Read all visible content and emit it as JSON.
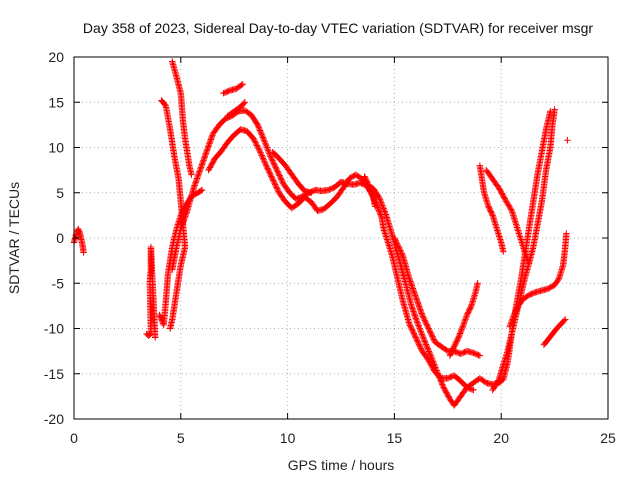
{
  "chart_data": {
    "type": "scatter",
    "title": "Day 358 of 2023, Sidereal Day-to-day VTEC variation (SDTVAR) for receiver msgr",
    "xlabel": "GPS time / hours",
    "ylabel": "SDTVAR / TECUs",
    "xlim": [
      0,
      25
    ],
    "ylim": [
      -20,
      20
    ],
    "xticks": [
      "0",
      "5",
      "10",
      "15",
      "20",
      "25"
    ],
    "yticks": [
      "-20",
      "-15",
      "-10",
      "-5",
      "0",
      "5",
      "10",
      "15",
      "20"
    ],
    "grid": true,
    "marker": "+",
    "color": "#ff0000",
    "series": [
      {
        "points": [
          [
            0.0,
            -0.5
          ],
          [
            0.1,
            0.4
          ],
          [
            0.2,
            1.0
          ],
          [
            0.3,
            0.3
          ],
          [
            0.4,
            -0.8
          ],
          [
            0.45,
            -1.6
          ]
        ]
      },
      {
        "points": [
          [
            3.4,
            -10.6
          ],
          [
            3.5,
            -10.8
          ],
          [
            3.6,
            -10.5
          ],
          [
            3.55,
            -4.8
          ],
          [
            3.6,
            -3.5
          ],
          [
            3.6,
            -1.0
          ],
          [
            3.7,
            -6.0
          ],
          [
            3.75,
            -8.5
          ],
          [
            3.8,
            -11.0
          ]
        ]
      },
      {
        "points": [
          [
            4.0,
            -8.5
          ],
          [
            4.2,
            -9.6
          ],
          [
            4.3,
            -7.0
          ],
          [
            4.4,
            -4.0
          ],
          [
            4.6,
            -1.0
          ],
          [
            4.8,
            1.0
          ],
          [
            5.0,
            2.5
          ],
          [
            5.2,
            3.5
          ],
          [
            5.5,
            4.6
          ],
          [
            5.8,
            5.0
          ],
          [
            6.0,
            5.3
          ]
        ]
      },
      {
        "points": [
          [
            4.1,
            15.2
          ],
          [
            4.3,
            14.6
          ],
          [
            4.5,
            12.0
          ],
          [
            4.7,
            9.0
          ],
          [
            4.9,
            6.5
          ],
          [
            5.0,
            4.0
          ],
          [
            5.1,
            1.5
          ],
          [
            5.2,
            -1.0
          ],
          [
            5.0,
            -3.0
          ],
          [
            4.8,
            -6.0
          ],
          [
            4.6,
            -9.0
          ],
          [
            4.5,
            -10.0
          ]
        ]
      },
      {
        "points": [
          [
            4.6,
            19.5
          ],
          [
            4.8,
            17.8
          ],
          [
            5.0,
            16.0
          ],
          [
            5.1,
            13.0
          ],
          [
            5.2,
            11.0
          ],
          [
            5.3,
            9.5
          ],
          [
            5.4,
            8.0
          ],
          [
            5.5,
            7.0
          ]
        ]
      },
      {
        "points": [
          [
            4.6,
            -3.5
          ],
          [
            4.8,
            -1.0
          ],
          [
            5.0,
            1.0
          ],
          [
            5.3,
            3.0
          ],
          [
            5.6,
            5.5
          ],
          [
            5.9,
            7.5
          ],
          [
            6.2,
            9.5
          ],
          [
            6.5,
            11.5
          ],
          [
            6.8,
            12.5
          ],
          [
            7.1,
            13.2
          ],
          [
            7.4,
            13.5
          ],
          [
            7.7,
            14.0
          ],
          [
            8.0,
            14.1
          ],
          [
            8.3,
            13.6
          ],
          [
            8.6,
            12.5
          ],
          [
            8.9,
            10.8
          ],
          [
            9.2,
            9.0
          ],
          [
            9.5,
            7.5
          ],
          [
            9.8,
            6.0
          ],
          [
            10.1,
            5.0
          ],
          [
            10.4,
            4.3
          ],
          [
            10.7,
            4.6
          ],
          [
            11.0,
            5.0
          ],
          [
            11.3,
            5.3
          ],
          [
            11.6,
            5.2
          ],
          [
            11.9,
            5.3
          ],
          [
            12.2,
            5.6
          ],
          [
            12.5,
            6.2
          ],
          [
            12.8,
            6.0
          ],
          [
            13.1,
            5.9
          ],
          [
            13.4,
            6.1
          ],
          [
            13.7,
            5.8
          ],
          [
            14.0,
            5.5
          ],
          [
            14.3,
            4.4
          ],
          [
            14.6,
            2.6
          ],
          [
            14.9,
            0.3
          ],
          [
            15.2,
            -2.2
          ],
          [
            15.5,
            -4.8
          ],
          [
            15.8,
            -7.5
          ],
          [
            16.1,
            -9.5
          ],
          [
            16.4,
            -11.3
          ],
          [
            16.7,
            -13.0
          ],
          [
            17.0,
            -14.8
          ],
          [
            17.3,
            -16.5
          ],
          [
            17.6,
            -17.8
          ],
          [
            17.8,
            -18.5
          ],
          [
            18.1,
            -17.5
          ],
          [
            18.4,
            -16.5
          ],
          [
            18.7,
            -16.0
          ],
          [
            19.0,
            -15.5
          ],
          [
            19.3,
            -16.0
          ],
          [
            19.6,
            -16.2
          ],
          [
            19.9,
            -16.0
          ],
          [
            20.1,
            -15.6
          ],
          [
            20.3,
            -13.8
          ],
          [
            20.5,
            -10.5
          ],
          [
            20.7,
            -7.5
          ],
          [
            20.9,
            -5.0
          ],
          [
            21.1,
            -2.0
          ],
          [
            21.3,
            1.0
          ],
          [
            21.5,
            4.0
          ],
          [
            21.7,
            7.0
          ],
          [
            21.9,
            9.5
          ],
          [
            22.1,
            12.0
          ],
          [
            22.3,
            14.0
          ]
        ]
      },
      {
        "points": [
          [
            6.3,
            7.5
          ],
          [
            6.6,
            8.8
          ],
          [
            6.9,
            9.6
          ],
          [
            7.2,
            10.6
          ],
          [
            7.5,
            11.4
          ],
          [
            7.8,
            12.0
          ],
          [
            8.1,
            11.8
          ],
          [
            8.4,
            11.0
          ],
          [
            8.7,
            9.6
          ],
          [
            9.0,
            8.0
          ],
          [
            9.3,
            6.5
          ],
          [
            9.6,
            5.0
          ],
          [
            9.9,
            4.0
          ],
          [
            10.2,
            3.3
          ],
          [
            10.5,
            3.8
          ],
          [
            10.8,
            4.5
          ],
          [
            11.1,
            4.0
          ],
          [
            11.4,
            3.0
          ],
          [
            11.7,
            3.2
          ],
          [
            12.0,
            3.8
          ],
          [
            12.3,
            4.5
          ],
          [
            12.6,
            5.5
          ],
          [
            12.9,
            6.6
          ],
          [
            13.2,
            7.0
          ],
          [
            13.5,
            6.5
          ],
          [
            13.8,
            5.4
          ],
          [
            14.0,
            4.6
          ],
          [
            14.1,
            3.5
          ]
        ]
      },
      {
        "points": [
          [
            7.0,
            16.0
          ],
          [
            7.3,
            16.3
          ],
          [
            7.6,
            16.5
          ],
          [
            7.9,
            17.0
          ]
        ]
      },
      {
        "points": [
          [
            7.2,
            13.5
          ],
          [
            7.5,
            14.0
          ],
          [
            7.8,
            14.5
          ],
          [
            8.0,
            15.0
          ]
        ]
      },
      {
        "points": [
          [
            9.3,
            9.5
          ],
          [
            9.6,
            8.8
          ],
          [
            9.9,
            8.0
          ],
          [
            10.2,
            7.0
          ],
          [
            10.5,
            6.0
          ],
          [
            10.8,
            5.2
          ],
          [
            11.1,
            5.0
          ]
        ]
      },
      {
        "points": [
          [
            13.6,
            6.8
          ],
          [
            13.8,
            5.8
          ],
          [
            14.0,
            4.5
          ],
          [
            14.2,
            3.5
          ],
          [
            14.4,
            2.3
          ],
          [
            14.5,
            1.0
          ],
          [
            14.7,
            -0.5
          ],
          [
            14.9,
            -2.0
          ],
          [
            15.1,
            -4.0
          ],
          [
            15.4,
            -7.0
          ],
          [
            15.7,
            -9.5
          ],
          [
            16.0,
            -11.0
          ],
          [
            16.3,
            -12.5
          ],
          [
            16.6,
            -13.5
          ],
          [
            16.9,
            -14.8
          ],
          [
            17.2,
            -15.5
          ],
          [
            17.5,
            -15.5
          ],
          [
            17.8,
            -15.2
          ],
          [
            18.1,
            -15.8
          ],
          [
            18.4,
            -16.5
          ],
          [
            18.7,
            -16.8
          ]
        ]
      },
      {
        "points": [
          [
            15.0,
            0.0
          ],
          [
            15.4,
            -2.0
          ],
          [
            15.7,
            -4.5
          ],
          [
            16.0,
            -6.5
          ],
          [
            16.3,
            -8.5
          ],
          [
            16.6,
            -10.0
          ],
          [
            16.9,
            -11.5
          ],
          [
            17.2,
            -12.0
          ],
          [
            17.5,
            -12.5
          ],
          [
            17.8,
            -12.5
          ],
          [
            18.1,
            -12.8
          ],
          [
            18.4,
            -12.5
          ],
          [
            18.7,
            -12.7
          ],
          [
            19.0,
            -13.0
          ]
        ]
      },
      {
        "points": [
          [
            17.6,
            -13.0
          ],
          [
            17.8,
            -12.0
          ],
          [
            18.0,
            -11.0
          ],
          [
            18.2,
            -9.8
          ],
          [
            18.4,
            -8.5
          ],
          [
            18.6,
            -7.5
          ],
          [
            18.8,
            -6.0
          ],
          [
            18.9,
            -5.0
          ]
        ]
      },
      {
        "points": [
          [
            19.0,
            8.0
          ],
          [
            19.1,
            6.5
          ],
          [
            19.2,
            5.0
          ],
          [
            19.4,
            3.5
          ],
          [
            19.6,
            2.5
          ],
          [
            19.8,
            1.0
          ],
          [
            20.0,
            -0.5
          ],
          [
            20.1,
            -1.5
          ]
        ]
      },
      {
        "points": [
          [
            19.3,
            7.5
          ],
          [
            19.6,
            6.5
          ],
          [
            19.9,
            5.5
          ],
          [
            20.2,
            4.2
          ],
          [
            20.5,
            3.0
          ],
          [
            20.7,
            1.5
          ],
          [
            20.9,
            0.0
          ],
          [
            21.1,
            -1.5
          ],
          [
            21.3,
            -2.8
          ]
        ]
      },
      {
        "points": [
          [
            19.6,
            -16.8
          ],
          [
            19.9,
            -15.6
          ],
          [
            20.1,
            -14.0
          ],
          [
            20.3,
            -12.5
          ],
          [
            20.5,
            -10.5
          ],
          [
            20.7,
            -8.5
          ],
          [
            20.9,
            -6.5
          ],
          [
            21.1,
            -4.5
          ],
          [
            21.3,
            -2.8
          ],
          [
            21.5,
            -1.0
          ],
          [
            21.7,
            1.5
          ],
          [
            21.9,
            4.0
          ],
          [
            22.1,
            7.5
          ],
          [
            22.3,
            10.0
          ],
          [
            22.4,
            12.5
          ],
          [
            22.5,
            14.2
          ]
        ]
      },
      {
        "points": [
          [
            20.4,
            -9.8
          ],
          [
            20.6,
            -8.5
          ],
          [
            20.8,
            -7.5
          ],
          [
            21.0,
            -6.8
          ],
          [
            21.3,
            -6.3
          ],
          [
            21.6,
            -6.0
          ],
          [
            21.9,
            -5.8
          ],
          [
            22.2,
            -5.6
          ],
          [
            22.5,
            -5.2
          ],
          [
            22.7,
            -4.5
          ],
          [
            22.9,
            -3.0
          ],
          [
            23.0,
            -1.0
          ],
          [
            23.05,
            0.5
          ]
        ]
      },
      {
        "points": [
          [
            22.0,
            -11.8
          ],
          [
            22.2,
            -11.2
          ],
          [
            22.4,
            -10.6
          ],
          [
            22.6,
            -10.0
          ],
          [
            22.8,
            -9.5
          ],
          [
            23.0,
            -9.0
          ]
        ]
      },
      {
        "points": [
          [
            23.1,
            10.8
          ]
        ]
      }
    ]
  }
}
